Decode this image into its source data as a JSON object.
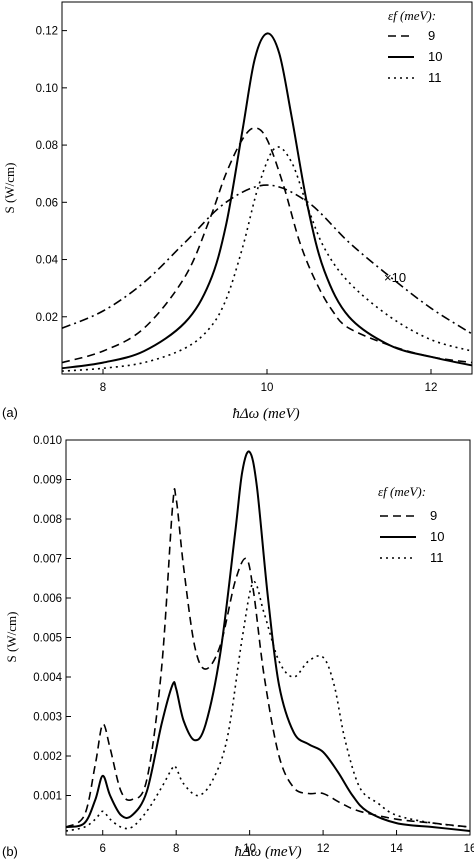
{
  "chart_data": [
    {
      "type": "line",
      "panel_label": "(a)",
      "xlabel": "ħΔω (meV)",
      "ylabel": "S (W/cm)",
      "xlim": [
        7.5,
        12.5
      ],
      "ylim": [
        0.0,
        0.13
      ],
      "xticks": [
        "8",
        "10",
        "12"
      ],
      "xtick_values": [
        8,
        10,
        12
      ],
      "yticks": [
        "0.02",
        "0.04",
        "0.06",
        "0.08",
        "0.10",
        "0.12"
      ],
      "ytick_values": [
        0.02,
        0.04,
        0.06,
        0.08,
        0.1,
        0.12
      ],
      "legend_title": "εf (meV):",
      "legend_position": "top-right",
      "annotation": "×10",
      "series": [
        {
          "name": "9",
          "style": "dashed",
          "x": [
            7.5,
            8.0,
            8.5,
            9.0,
            9.3,
            9.5,
            9.7,
            9.85,
            10.0,
            10.2,
            10.4,
            10.6,
            10.8,
            11.0,
            11.5,
            12.0,
            12.5
          ],
          "y": [
            0.004,
            0.008,
            0.016,
            0.034,
            0.054,
            0.07,
            0.082,
            0.086,
            0.082,
            0.066,
            0.046,
            0.032,
            0.022,
            0.016,
            0.01,
            0.006,
            0.004
          ]
        },
        {
          "name": "10",
          "style": "solid",
          "x": [
            7.5,
            8.0,
            8.5,
            9.0,
            9.3,
            9.5,
            9.7,
            9.85,
            10.0,
            10.15,
            10.3,
            10.5,
            10.7,
            11.0,
            11.5,
            12.0,
            12.5
          ],
          "y": [
            0.002,
            0.004,
            0.008,
            0.018,
            0.032,
            0.052,
            0.085,
            0.11,
            0.119,
            0.112,
            0.09,
            0.058,
            0.036,
            0.02,
            0.01,
            0.006,
            0.003
          ]
        },
        {
          "name": "11",
          "style": "dotted",
          "x": [
            7.5,
            8.0,
            8.5,
            9.0,
            9.3,
            9.5,
            9.7,
            9.9,
            10.1,
            10.3,
            10.5,
            10.7,
            11.0,
            11.5,
            12.0,
            12.5
          ],
          "y": [
            0.001,
            0.002,
            0.004,
            0.009,
            0.016,
            0.026,
            0.044,
            0.066,
            0.079,
            0.074,
            0.058,
            0.044,
            0.032,
            0.02,
            0.012,
            0.008
          ]
        },
        {
          "name": "×10",
          "style": "dashdot",
          "x": [
            7.5,
            8.0,
            8.5,
            9.0,
            9.5,
            10.0,
            10.5,
            11.0,
            11.5,
            12.0,
            12.5
          ],
          "y": [
            0.016,
            0.022,
            0.032,
            0.046,
            0.06,
            0.066,
            0.06,
            0.046,
            0.034,
            0.023,
            0.014
          ]
        }
      ]
    },
    {
      "type": "line",
      "panel_label": "(b)",
      "xlabel": "ħΔω (meV)",
      "ylabel": "S (W/cm)",
      "xlim": [
        5,
        16
      ],
      "ylim": [
        0.0,
        0.01
      ],
      "xticks": [
        "6",
        "8",
        "10",
        "12",
        "14",
        "16"
      ],
      "xtick_values": [
        6,
        8,
        10,
        12,
        14,
        16
      ],
      "yticks": [
        "0.001",
        "0.002",
        "0.003",
        "0.004",
        "0.005",
        "0.006",
        "0.007",
        "0.008",
        "0.009",
        "0.010"
      ],
      "ytick_values": [
        0.001,
        0.002,
        0.003,
        0.004,
        0.005,
        0.006,
        0.007,
        0.008,
        0.009,
        0.01
      ],
      "legend_title": "εf (meV):",
      "legend_position": "top-right",
      "series": [
        {
          "name": "9",
          "style": "dashed",
          "x": [
            5.0,
            5.5,
            5.8,
            6.0,
            6.2,
            6.5,
            6.8,
            7.2,
            7.6,
            7.9,
            8.0,
            8.2,
            8.5,
            8.8,
            9.2,
            9.6,
            9.9,
            10.1,
            10.4,
            10.8,
            11.2,
            11.6,
            12.0,
            12.5,
            13,
            14,
            15,
            16
          ],
          "y": [
            0.0002,
            0.0005,
            0.0018,
            0.0028,
            0.0022,
            0.0011,
            0.0009,
            0.0014,
            0.0042,
            0.0083,
            0.0085,
            0.0068,
            0.0048,
            0.0042,
            0.0048,
            0.0064,
            0.007,
            0.0062,
            0.004,
            0.002,
            0.0012,
            0.00105,
            0.00105,
            0.0008,
            0.0006,
            0.0004,
            0.0003,
            0.0002
          ]
        },
        {
          "name": "10",
          "style": "solid",
          "x": [
            5.0,
            5.5,
            5.8,
            6.0,
            6.2,
            6.5,
            6.8,
            7.2,
            7.6,
            7.9,
            8.0,
            8.2,
            8.5,
            8.8,
            9.2,
            9.6,
            9.8,
            10.0,
            10.2,
            10.5,
            10.8,
            11.2,
            11.6,
            12.0,
            12.4,
            12.8,
            13.2,
            14,
            15,
            16
          ],
          "y": [
            0.0002,
            0.0003,
            0.0009,
            0.0015,
            0.001,
            0.0005,
            0.0005,
            0.0011,
            0.0028,
            0.0038,
            0.0037,
            0.0029,
            0.0024,
            0.0028,
            0.0046,
            0.0076,
            0.0092,
            0.0097,
            0.0088,
            0.006,
            0.0038,
            0.0026,
            0.0023,
            0.0021,
            0.0016,
            0.001,
            0.0006,
            0.0003,
            0.0002,
            0.0001
          ]
        },
        {
          "name": "11",
          "style": "dotted",
          "x": [
            5.0,
            5.5,
            5.8,
            6.0,
            6.2,
            6.5,
            6.8,
            7.2,
            7.6,
            7.9,
            8.0,
            8.2,
            8.6,
            9.0,
            9.4,
            9.8,
            10.1,
            10.4,
            10.8,
            11.2,
            11.6,
            12.0,
            12.3,
            12.6,
            13.0,
            13.5,
            14,
            15,
            16
          ],
          "y": [
            0.0001,
            0.0002,
            0.0004,
            0.0006,
            0.0004,
            0.0002,
            0.0002,
            0.0006,
            0.0012,
            0.0017,
            0.0017,
            0.0013,
            0.001,
            0.0014,
            0.0025,
            0.005,
            0.0064,
            0.0056,
            0.0044,
            0.004,
            0.0044,
            0.0045,
            0.0038,
            0.0024,
            0.0012,
            0.0008,
            0.0005,
            0.0003,
            0.0002
          ]
        }
      ]
    }
  ]
}
